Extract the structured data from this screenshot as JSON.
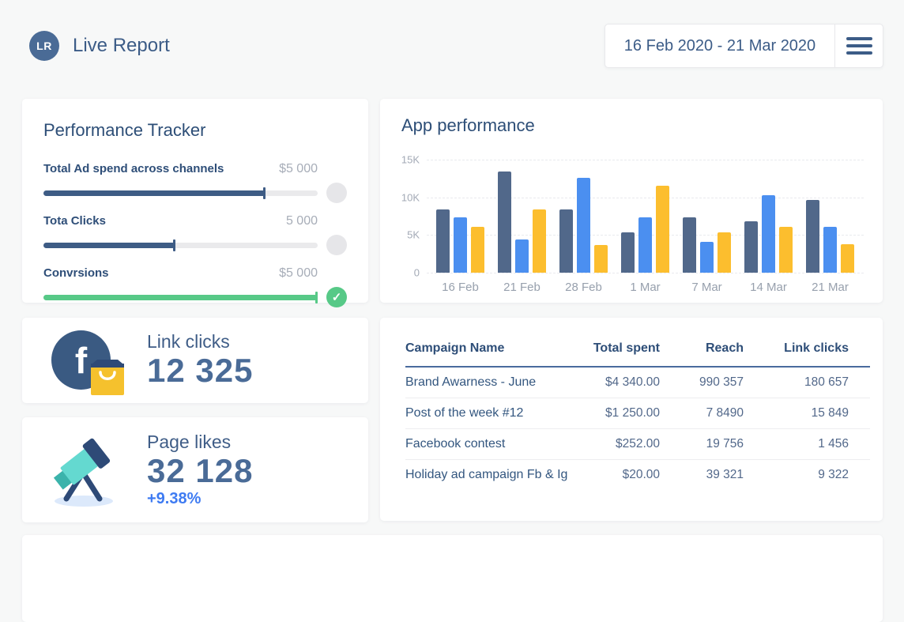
{
  "colors": {
    "page_background": "#f7f8f8",
    "card_background": "#ffffff",
    "primary_text": "#2e4e78",
    "muted_value": "#a7adb8",
    "slider_blue": "#3e5c85",
    "slider_green": "#57c987",
    "delta_blue": "#3e7bf2",
    "big_number": "#4a6b97",
    "table_header_rule": "#4a6b9e"
  },
  "header": {
    "logo": "LR",
    "title": "Live Report",
    "date_range": "16 Feb 2020 - 21 Mar 2020",
    "menu_icon": "hamburger-icon"
  },
  "performance_tracker": {
    "title": "Performance Tracker",
    "sliders": [
      {
        "label": "Total Ad spend across channels",
        "value": "$5 000",
        "percent": 81,
        "color": "#3e5c85",
        "knob": "default"
      },
      {
        "label": "Tota Clicks",
        "value": "5 000",
        "percent": 48,
        "color": "#3e5c85",
        "knob": "default"
      },
      {
        "label": "Convrsions",
        "value": "$5 000",
        "percent": 100,
        "color": "#57c987",
        "knob": "check",
        "check_glyph": "✓"
      }
    ]
  },
  "chart_data": {
    "type": "bar",
    "title": "App performance",
    "categories": [
      "16 Feb",
      "21 Feb",
      "28 Feb",
      "1 Mar",
      "7 Mar",
      "14 Mar",
      "21 Mar"
    ],
    "series": [
      {
        "name": "dark-blue",
        "color": "#51688a",
        "values": [
          8400,
          13400,
          8400,
          5300,
          7300,
          6800,
          9600
        ]
      },
      {
        "name": "blue",
        "color": "#4b8ff0",
        "values": [
          7300,
          4400,
          12600,
          7300,
          4100,
          10300,
          6100
        ]
      },
      {
        "name": "yellow",
        "color": "#fcbe2e",
        "values": [
          6100,
          8400,
          3700,
          11500,
          5400,
          6100,
          3800
        ]
      }
    ],
    "ylim": [
      0,
      15000
    ],
    "yticks": [
      {
        "label": "15K",
        "value": 15000
      },
      {
        "label": "10K",
        "value": 10000
      },
      {
        "label": "5K",
        "value": 5000
      },
      {
        "label": "0",
        "value": 0
      }
    ],
    "grid": "horizontal-dashed",
    "legend_position": "none"
  },
  "stats": {
    "link_clicks": {
      "label": "Link clicks",
      "value": "12 325",
      "icon": "facebook-shopping-bag-icon",
      "facebook_letter": "f"
    },
    "page_likes": {
      "label": "Page likes",
      "value": "32 128",
      "delta": "+9.38%",
      "icon": "telescope-icon"
    }
  },
  "campaign_table": {
    "headers": [
      "Campaign Name",
      "Total spent",
      "Reach",
      "Link clicks"
    ],
    "rows": [
      [
        "Brand Awarness - June",
        "$4 340.00",
        "990 357",
        "180 657"
      ],
      [
        "Post of the week #12",
        "$1 250.00",
        "7 8490",
        "15 849"
      ],
      [
        "Facebook contest",
        "$252.00",
        "19 756",
        "1 456"
      ],
      [
        "Holiday ad campaign Fb & Ig",
        "$20.00",
        "39 321",
        "9 322"
      ]
    ]
  }
}
